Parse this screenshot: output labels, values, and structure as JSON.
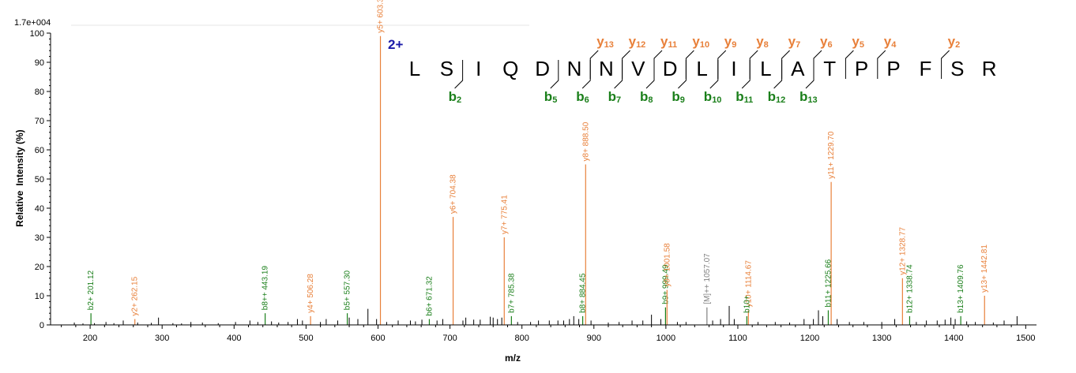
{
  "chart_data": {
    "type": "bar",
    "title": "",
    "scale_label": "1.7e+004",
    "xlabel": "m/z",
    "ylabel_parts": [
      "Relative",
      "Intensity (%)"
    ],
    "xlim": [
      145,
      1515
    ],
    "ylim": [
      0,
      100
    ],
    "x_ticks": [
      200,
      300,
      400,
      500,
      600,
      700,
      800,
      900,
      1000,
      1100,
      1200,
      1300,
      1400,
      1500
    ],
    "y_ticks": [
      0,
      10,
      20,
      30,
      40,
      50,
      60,
      70,
      80,
      90,
      100
    ],
    "colors": {
      "y": "#e8803a",
      "b": "#1a7f1a",
      "other": "#808080",
      "noise": "#000000",
      "charge": "#1a1aa8"
    },
    "annotated_peaks": [
      {
        "mz": 201.12,
        "intensity": 4,
        "label": "b2+ 201.12",
        "series": "b"
      },
      {
        "mz": 262.15,
        "intensity": 2,
        "label": "y2+ 262.15",
        "series": "y"
      },
      {
        "mz": 443.19,
        "intensity": 4,
        "label": "b8++ 443.19",
        "series": "b"
      },
      {
        "mz": 506.28,
        "intensity": 3,
        "label": "y4+ 506.28",
        "series": "y"
      },
      {
        "mz": 557.3,
        "intensity": 4,
        "label": "b5+ 557.30",
        "series": "b"
      },
      {
        "mz": 603.35,
        "intensity": 99,
        "label": "y5+ 603.3",
        "series": "y"
      },
      {
        "mz": 671.32,
        "intensity": 2,
        "label": "b6+ 671.32",
        "series": "b"
      },
      {
        "mz": 704.38,
        "intensity": 37,
        "label": "y6+ 704.38",
        "series": "y"
      },
      {
        "mz": 775.41,
        "intensity": 30,
        "label": "y7+ 775.41",
        "series": "y"
      },
      {
        "mz": 785.38,
        "intensity": 3,
        "label": "b7+ 785.38",
        "series": "b"
      },
      {
        "mz": 884.45,
        "intensity": 3,
        "label": "b8+ 884.45",
        "series": "b"
      },
      {
        "mz": 888.5,
        "intensity": 55,
        "label": "y8+ 888.50",
        "series": "y"
      },
      {
        "mz": 999.49,
        "intensity": 6,
        "label": "b9+ 999.49",
        "series": "b"
      },
      {
        "mz": 1001.58,
        "intensity": 12,
        "label": "y9+ 1001.58",
        "series": "y"
      },
      {
        "mz": 1057.07,
        "intensity": 6,
        "label": "[M]++ 1057.07",
        "series": "other"
      },
      {
        "mz": 1114.67,
        "intensity": 5,
        "label": "y10+ 1114.67",
        "series": "y"
      },
      {
        "mz": 1112.5,
        "intensity": 3,
        "label": "b10+",
        "series": "b"
      },
      {
        "mz": 1225.66,
        "intensity": 5,
        "label": "b11+ 1225.66",
        "series": "b"
      },
      {
        "mz": 1229.7,
        "intensity": 49,
        "label": "y11+ 1229.70",
        "series": "y"
      },
      {
        "mz": 1328.77,
        "intensity": 16,
        "label": "y12+ 1328.77",
        "series": "y"
      },
      {
        "mz": 1338.74,
        "intensity": 3,
        "label": "b12+ 1338.74",
        "series": "b"
      },
      {
        "mz": 1409.76,
        "intensity": 3,
        "label": "b13+ 1409.76",
        "series": "b"
      },
      {
        "mz": 1442.81,
        "intensity": 10,
        "label": "y13+ 1442.81",
        "series": "y"
      }
    ],
    "noise_peaks": [
      [
        178,
        0.8
      ],
      [
        190,
        0.5
      ],
      [
        206,
        0.6
      ],
      [
        222,
        1.0
      ],
      [
        233,
        0.6
      ],
      [
        246,
        1.5
      ],
      [
        266,
        0.8
      ],
      [
        285,
        0.7
      ],
      [
        295,
        2.5
      ],
      [
        315,
        0.6
      ],
      [
        327,
        0.5
      ],
      [
        340,
        1.0
      ],
      [
        356,
        0.8
      ],
      [
        378,
        0.6
      ],
      [
        402,
        1.0
      ],
      [
        422,
        1.5
      ],
      [
        433,
        1.0
      ],
      [
        452,
        1.2
      ],
      [
        462,
        0.8
      ],
      [
        475,
        1.0
      ],
      [
        488,
        2.0
      ],
      [
        495,
        1.5
      ],
      [
        520,
        1.0
      ],
      [
        528,
        2.0
      ],
      [
        544,
        1.5
      ],
      [
        560,
        2.5
      ],
      [
        572,
        2.0
      ],
      [
        586,
        5.5
      ],
      [
        598,
        2.0
      ],
      [
        612,
        1.0
      ],
      [
        628,
        1.5
      ],
      [
        645,
        1.5
      ],
      [
        652,
        1.2
      ],
      [
        661,
        1.8
      ],
      [
        682,
        1.5
      ],
      [
        690,
        2.0
      ],
      [
        718,
        1.5
      ],
      [
        722,
        2.5
      ],
      [
        733,
        1.8
      ],
      [
        742,
        1.8
      ],
      [
        756,
        2.8
      ],
      [
        760,
        2.5
      ],
      [
        766,
        2.0
      ],
      [
        772,
        2.5
      ],
      [
        794,
        1.0
      ],
      [
        812,
        1.0
      ],
      [
        823,
        1.5
      ],
      [
        838,
        1.5
      ],
      [
        850,
        1.5
      ],
      [
        858,
        1.5
      ],
      [
        866,
        2.0
      ],
      [
        872,
        3.0
      ],
      [
        879,
        2.0
      ],
      [
        896,
        1.5
      ],
      [
        920,
        0.8
      ],
      [
        935,
        1.0
      ],
      [
        953,
        1.5
      ],
      [
        968,
        1.5
      ],
      [
        980,
        3.5
      ],
      [
        993,
        2.0
      ],
      [
        1016,
        1.0
      ],
      [
        1028,
        1.0
      ],
      [
        1065,
        1.5
      ],
      [
        1076,
        2.0
      ],
      [
        1088,
        6.5
      ],
      [
        1095,
        2.0
      ],
      [
        1128,
        1.0
      ],
      [
        1152,
        1.0
      ],
      [
        1172,
        0.8
      ],
      [
        1192,
        2.0
      ],
      [
        1205,
        2.0
      ],
      [
        1212,
        5.0
      ],
      [
        1218,
        3.0
      ],
      [
        1238,
        2.0
      ],
      [
        1255,
        1.0
      ],
      [
        1275,
        1.0
      ],
      [
        1300,
        1.0
      ],
      [
        1318,
        2.0
      ],
      [
        1348,
        1.0
      ],
      [
        1362,
        1.5
      ],
      [
        1377,
        1.5
      ],
      [
        1388,
        1.8
      ],
      [
        1396,
        2.5
      ],
      [
        1402,
        2.0
      ],
      [
        1418,
        1.2
      ],
      [
        1430,
        1.0
      ],
      [
        1455,
        0.8
      ],
      [
        1470,
        1.5
      ],
      [
        1488,
        3.0
      ]
    ],
    "annotation": {
      "charge": "2+",
      "sequence": [
        "L",
        "S",
        "I",
        "Q",
        "D",
        "N",
        "N",
        "V",
        "D",
        "L",
        "I",
        "L",
        "A",
        "T",
        "P",
        "P",
        "F",
        "S",
        "R"
      ],
      "y_ions": [
        {
          "prefix": "y",
          "num": "13",
          "after": 6
        },
        {
          "prefix": "y",
          "num": "12",
          "after": 7
        },
        {
          "prefix": "y",
          "num": "11",
          "after": 8
        },
        {
          "prefix": "y",
          "num": "10",
          "after": 9
        },
        {
          "prefix": "y",
          "num": "9",
          "after": 10
        },
        {
          "prefix": "y",
          "num": "8",
          "after": 11
        },
        {
          "prefix": "y",
          "num": "7",
          "after": 12
        },
        {
          "prefix": "y",
          "num": "6",
          "after": 13
        },
        {
          "prefix": "y",
          "num": "5",
          "after": 14
        },
        {
          "prefix": "y",
          "num": "4",
          "after": 15
        },
        {
          "prefix": "y",
          "num": "2",
          "after": 17
        }
      ],
      "b_ions": [
        {
          "prefix": "b",
          "num": "2",
          "after": 2
        },
        {
          "prefix": "b",
          "num": "5",
          "after": 5
        },
        {
          "prefix": "b",
          "num": "6",
          "after": 6
        },
        {
          "prefix": "b",
          "num": "7",
          "after": 7
        },
        {
          "prefix": "b",
          "num": "8",
          "after": 8
        },
        {
          "prefix": "b",
          "num": "9",
          "after": 9
        },
        {
          "prefix": "b",
          "num": "10",
          "after": 10
        },
        {
          "prefix": "b",
          "num": "11",
          "after": 11
        },
        {
          "prefix": "b",
          "num": "12",
          "after": 12
        },
        {
          "prefix": "b",
          "num": "13",
          "after": 13
        }
      ]
    }
  }
}
